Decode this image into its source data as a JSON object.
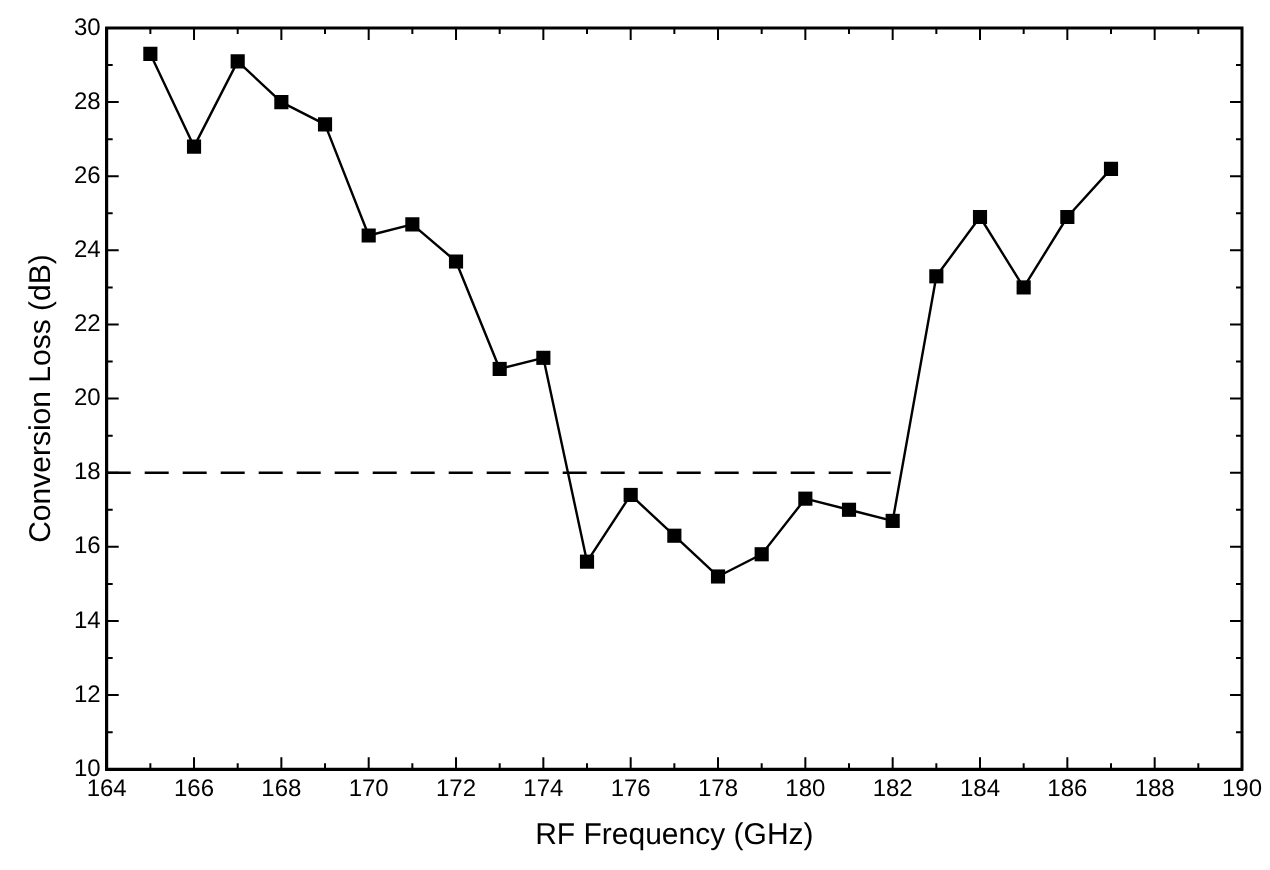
{
  "chart_data": {
    "type": "line",
    "xlabel": "RF Frequency (GHz)",
    "ylabel": "Conversion Loss (dB)",
    "x": [
      165,
      166,
      167,
      168,
      169,
      170,
      171,
      172,
      173,
      174,
      175,
      176,
      177,
      178,
      179,
      180,
      181,
      182,
      183,
      184,
      185,
      186,
      187
    ],
    "series": [
      {
        "color": "#000000",
        "marker": "square",
        "line_style": "solid",
        "values": [
          29.3,
          26.8,
          29.1,
          28.0,
          27.4,
          24.4,
          24.7,
          23.7,
          20.8,
          21.1,
          15.6,
          17.4,
          16.3,
          15.2,
          15.8,
          17.3,
          17.0,
          16.7,
          23.3,
          24.9,
          23.0,
          24.9,
          26.2
        ]
      },
      {
        "color": "#000000",
        "marker": "none",
        "line_style": "dashed",
        "x": [
          164,
          182
        ],
        "values": [
          18,
          18
        ]
      }
    ],
    "xlim": [
      164,
      190
    ],
    "xticks": [
      164,
      {
        "value": 165,
        "label": null
      },
      166,
      {
        "value": 167,
        "label": null
      },
      168,
      {
        "value": 169,
        "label": null
      },
      170,
      {
        "value": 171,
        "label": null
      },
      172,
      {
        "value": 173,
        "label": null
      },
      174,
      {
        "value": 175,
        "label": null
      },
      176,
      {
        "value": 177,
        "label": null
      },
      178,
      {
        "value": 179,
        "label": null
      },
      180,
      {
        "value": 181,
        "label": null
      },
      182,
      {
        "value": 183,
        "label": null
      },
      184,
      {
        "value": 185,
        "label": null
      },
      186,
      {
        "value": 187,
        "label": null
      },
      188,
      {
        "value": 189,
        "label": null
      },
      190
    ],
    "ylim": [
      10,
      30
    ],
    "yticks": [
      10,
      {
        "value": 11,
        "label": null
      },
      12,
      {
        "value": 13,
        "label": null
      },
      14,
      {
        "value": 15,
        "label": null
      },
      16,
      {
        "value": 17,
        "label": null
      },
      18,
      {
        "value": 19,
        "label": null
      },
      20,
      {
        "value": 21,
        "label": null
      },
      22,
      {
        "value": 23,
        "label": null
      },
      24,
      {
        "value": 25,
        "label": null
      },
      26,
      {
        "value": 27,
        "label": null
      },
      28,
      {
        "value": 29,
        "label": null
      },
      30
    ],
    "grid": false,
    "legend": false
  }
}
